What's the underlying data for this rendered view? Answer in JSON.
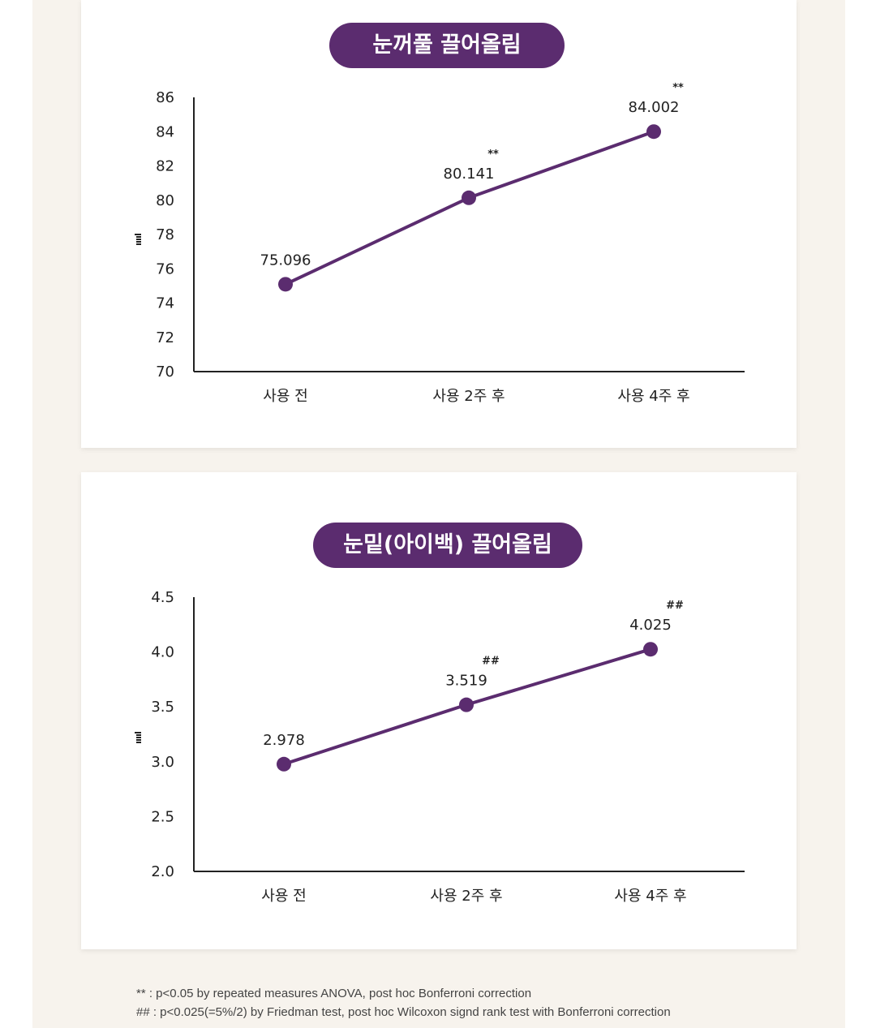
{
  "chart_data": [
    {
      "type": "line",
      "title": "눈꺼풀 끌어올림",
      "ylabel": "",
      "categories": [
        "사용 전",
        "사용 2주 후",
        "사용 4주 후"
      ],
      "values": [
        75.096,
        80.141,
        84.002
      ],
      "data_labels": [
        "75.096",
        "80.141",
        "84.002"
      ],
      "significance": [
        "",
        "**",
        "**"
      ],
      "ylim": [
        70,
        86
      ],
      "yticks": [
        "70",
        "72",
        "74",
        "76",
        "78",
        "80",
        "82",
        "84",
        "86"
      ],
      "color": "#5b2c6f",
      "grid": false
    },
    {
      "type": "line",
      "title": "눈밑(아이백) 끌어올림",
      "ylabel": "",
      "categories": [
        "사용 전",
        "사용 2주 후",
        "사용 4주 후"
      ],
      "values": [
        2.978,
        3.519,
        4.025
      ],
      "data_labels": [
        "2.978",
        "3.519",
        "4.025"
      ],
      "significance": [
        "",
        "##",
        "##"
      ],
      "ylim": [
        2.0,
        4.5
      ],
      "yticks": [
        "2.0",
        "2.5",
        "3.0",
        "3.5",
        "4.0",
        "4.5"
      ],
      "color": "#5b2c6f",
      "grid": false
    }
  ],
  "footnotes": [
    "** : p<0.05 by repeated measures ANOVA, post hoc Bonferroni correction",
    "## : p<0.025(=5%/2) by Friedman test, post hoc Wilcoxon signd rank test with Bonferroni correction"
  ]
}
